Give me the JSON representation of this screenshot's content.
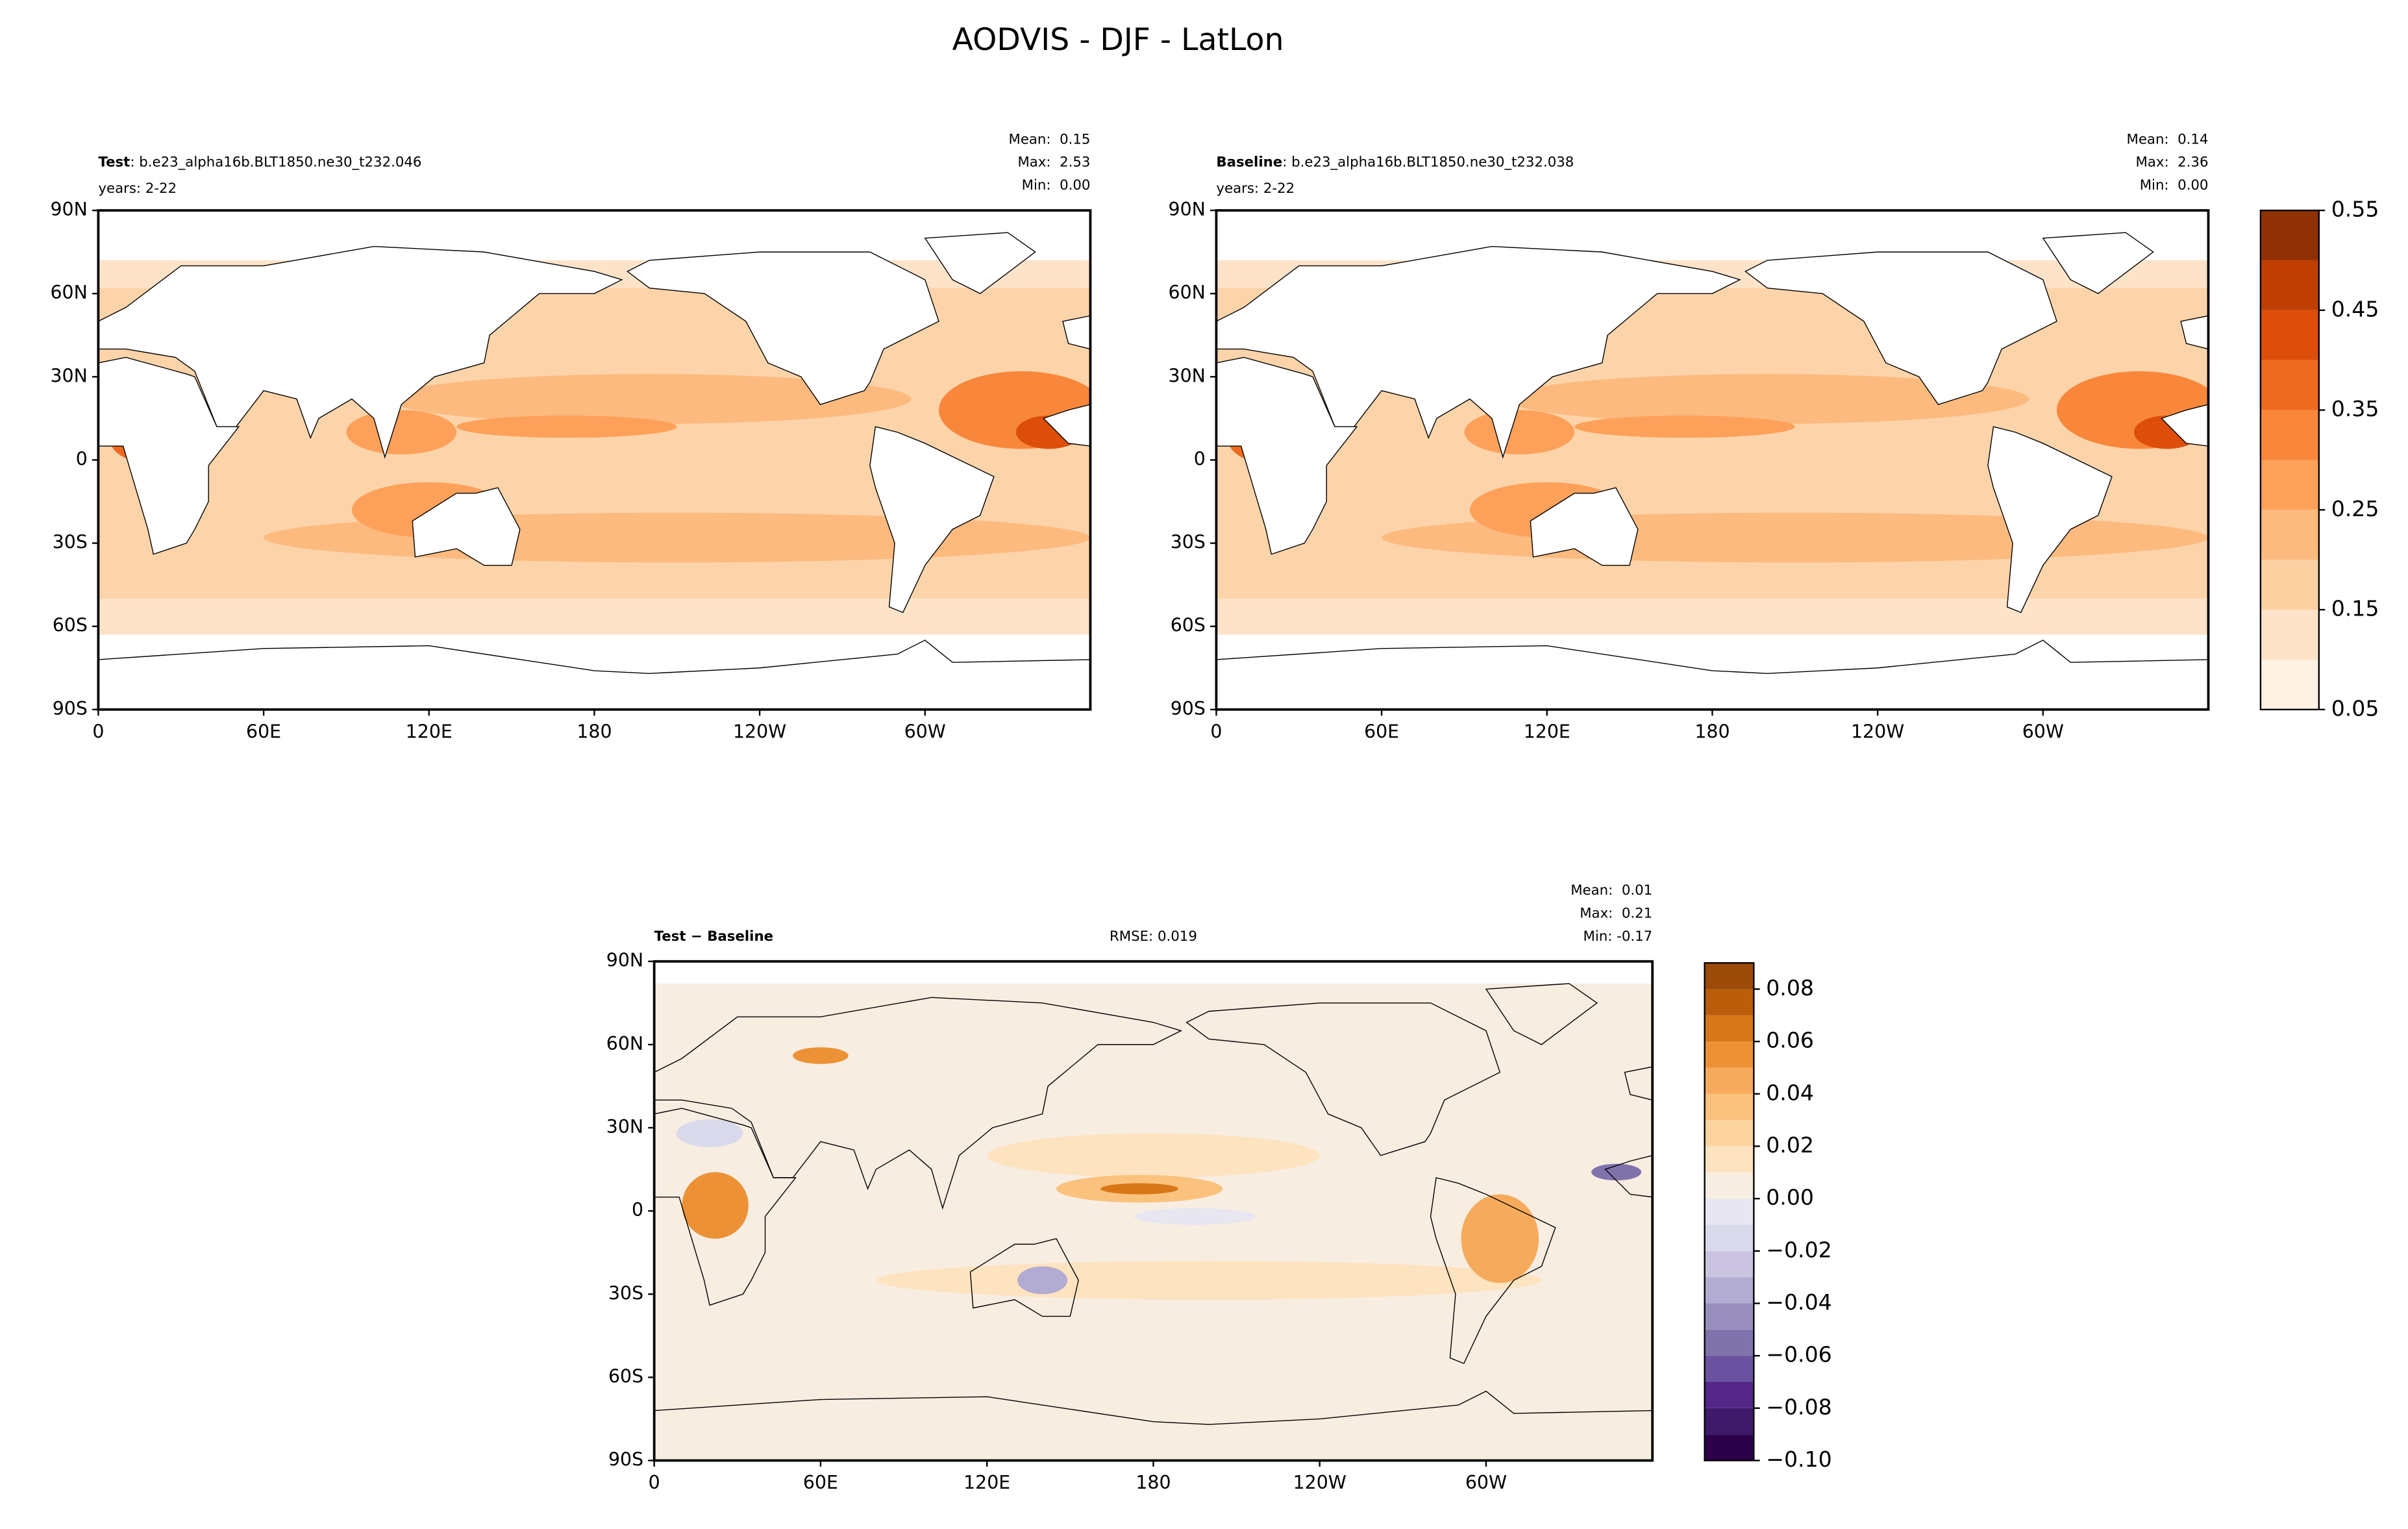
{
  "title": "AODVIS - DJF - LatLon",
  "chart_data": [
    {
      "type": "contour-map",
      "name": "Test",
      "run": ": b.e23_alpha16b.BLT1850.ne30_t232.046",
      "years": "years: 2-22",
      "stats": [
        "Mean:  0.15",
        "Max:  2.53",
        "Min:  0.00"
      ],
      "xlim": [
        0,
        360
      ],
      "xticks": [
        0,
        {
          "value": 60,
          "label": "60E"
        },
        {
          "value": 120,
          "label": "120E"
        },
        180,
        {
          "value": 240,
          "label": "120W"
        },
        {
          "value": 300,
          "label": "60W"
        }
      ],
      "ylim": [
        -90,
        90
      ],
      "yticks": [
        {
          "value": -90,
          "label": "90S"
        },
        {
          "value": -60,
          "label": "60S"
        },
        {
          "value": -30,
          "label": "30S"
        },
        0,
        {
          "value": 30,
          "label": "30N"
        },
        {
          "value": 60,
          "label": "60N"
        },
        {
          "value": 90,
          "label": "90N"
        }
      ]
    },
    {
      "type": "contour-map",
      "name": "Baseline",
      "run": ": b.e23_alpha16b.BLT1850.ne30_t232.038",
      "years": "years: 2-22",
      "stats": [
        "Mean:  0.14",
        "Max:  2.36",
        "Min:  0.00"
      ],
      "xlim": [
        0,
        360
      ],
      "xticks": [
        0,
        {
          "value": 60,
          "label": "60E"
        },
        {
          "value": 120,
          "label": "120E"
        },
        180,
        {
          "value": 240,
          "label": "120W"
        },
        {
          "value": 300,
          "label": "60W"
        }
      ],
      "ylim": [
        -90,
        90
      ],
      "yticks": [
        {
          "value": -90,
          "label": "90S"
        },
        {
          "value": -60,
          "label": "60S"
        },
        {
          "value": -30,
          "label": "30S"
        },
        0,
        {
          "value": 30,
          "label": "30N"
        },
        {
          "value": 60,
          "label": "60N"
        },
        {
          "value": 90,
          "label": "90N"
        }
      ]
    },
    {
      "type": "contour-map",
      "name": "Test − Baseline",
      "rmse": "RMSE: 0.019",
      "stats": [
        "Mean:  0.01",
        "Max:  0.21",
        "Min: -0.17"
      ],
      "xlim": [
        0,
        360
      ],
      "xticks": [
        0,
        {
          "value": 60,
          "label": "60E"
        },
        {
          "value": 120,
          "label": "120E"
        },
        180,
        {
          "value": 240,
          "label": "120W"
        },
        {
          "value": 300,
          "label": "60W"
        }
      ],
      "ylim": [
        -90,
        90
      ],
      "yticks": [
        {
          "value": -90,
          "label": "90S"
        },
        {
          "value": -60,
          "label": "60S"
        },
        {
          "value": -30,
          "label": "30S"
        },
        0,
        {
          "value": 30,
          "label": "30N"
        },
        {
          "value": 60,
          "label": "60N"
        },
        {
          "value": 90,
          "label": "90N"
        }
      ]
    },
    {
      "type": "colorbar",
      "ylim": [
        0.05,
        0.55
      ],
      "yticks": [
        0.05,
        0.15,
        0.25,
        0.35,
        0.45,
        0.55
      ],
      "levels": [
        0.05,
        0.1,
        0.15,
        0.2,
        0.25,
        0.3,
        0.35,
        0.4,
        0.45,
        0.5,
        0.55
      ],
      "colors": [
        "#fff1e4",
        "#fee3c8",
        "#fdd0a2",
        "#fdba7f",
        "#fda15a",
        "#f8873b",
        "#ee6a1f",
        "#dc4e0a",
        "#bf3f03",
        "#8f3104"
      ]
    },
    {
      "type": "colorbar",
      "ylim": [
        -0.1,
        0.09
      ],
      "yticks": [
        {
          "value": -0.1,
          "label": "−0.10"
        },
        {
          "value": -0.08,
          "label": "−0.08"
        },
        {
          "value": -0.06,
          "label": "−0.06"
        },
        {
          "value": -0.04,
          "label": "−0.04"
        },
        {
          "value": -0.02,
          "label": "−0.02"
        },
        {
          "value": 0,
          "label": "0.00"
        },
        0.02,
        0.04,
        0.06,
        0.08
      ],
      "levels": [
        -0.1,
        -0.09,
        -0.08,
        -0.07,
        -0.06,
        -0.05,
        -0.04,
        -0.03,
        -0.02,
        -0.01,
        0,
        0.01,
        0.02,
        0.03,
        0.04,
        0.05,
        0.06,
        0.07,
        0.08,
        0.09
      ],
      "colors": [
        "#2d004b",
        "#3f1a6b",
        "#542788",
        "#6a52a0",
        "#8073ac",
        "#998fbf",
        "#b2abd2",
        "#cac4e1",
        "#d8daeb",
        "#e7e6f1",
        "#f7ede1",
        "#fde3c0",
        "#fdd4a0",
        "#fbc27e",
        "#f6ab5c",
        "#ec9136",
        "#d87717",
        "#bb5d0b",
        "#9c4a08"
      ]
    }
  ]
}
